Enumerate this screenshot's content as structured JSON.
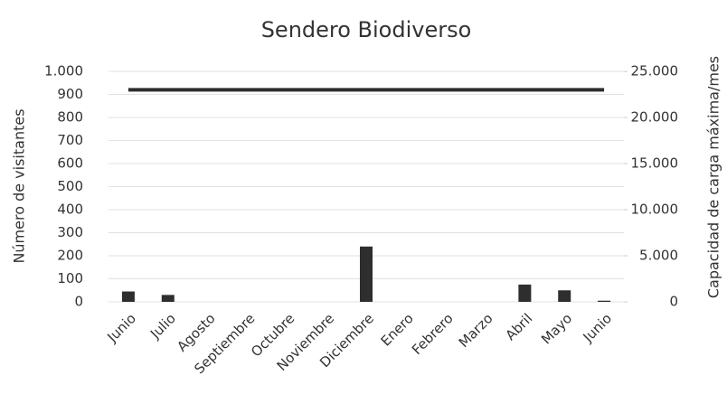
{
  "chart_data": {
    "type": "bar_line",
    "title": "Sendero Biodiverso",
    "y_label": "Número de visitantes",
    "y2_label": "Capacidad de carga máxima/mes",
    "categories": [
      "Junio",
      "Julio",
      "Agosto",
      "Septiembre",
      "Octubre",
      "Noviembre",
      "Diciembre",
      "Enero",
      "Febrero",
      "Marzo",
      "Abril",
      "Mayo",
      "Junio"
    ],
    "series": [
      {
        "type": "bar",
        "color": "#2e2e2e",
        "values": [
          45,
          30,
          0,
          0,
          0,
          0,
          240,
          0,
          0,
          0,
          75,
          50,
          5
        ]
      },
      {
        "type": "line",
        "axis": "y2",
        "color": "#2e2e2e",
        "values": [
          23000,
          23000,
          23000,
          23000,
          23000,
          23000,
          23000,
          23000,
          23000,
          23000,
          23000,
          23000,
          23000
        ]
      }
    ],
    "ylim": [
      0,
      1000
    ],
    "yticks": [
      0,
      100,
      200,
      300,
      400,
      500,
      600,
      700,
      800,
      900,
      {
        "value": 1000,
        "label": "1.000"
      }
    ],
    "y2lim": [
      0,
      25000
    ],
    "y2ticks": [
      0,
      {
        "value": 5000,
        "label": "5.000"
      },
      {
        "value": 10000,
        "label": "10.000"
      },
      {
        "value": 15000,
        "label": "15.000"
      },
      {
        "value": 20000,
        "label": "20.000"
      },
      {
        "value": 25000,
        "label": "25.000"
      }
    ],
    "grid": true
  }
}
